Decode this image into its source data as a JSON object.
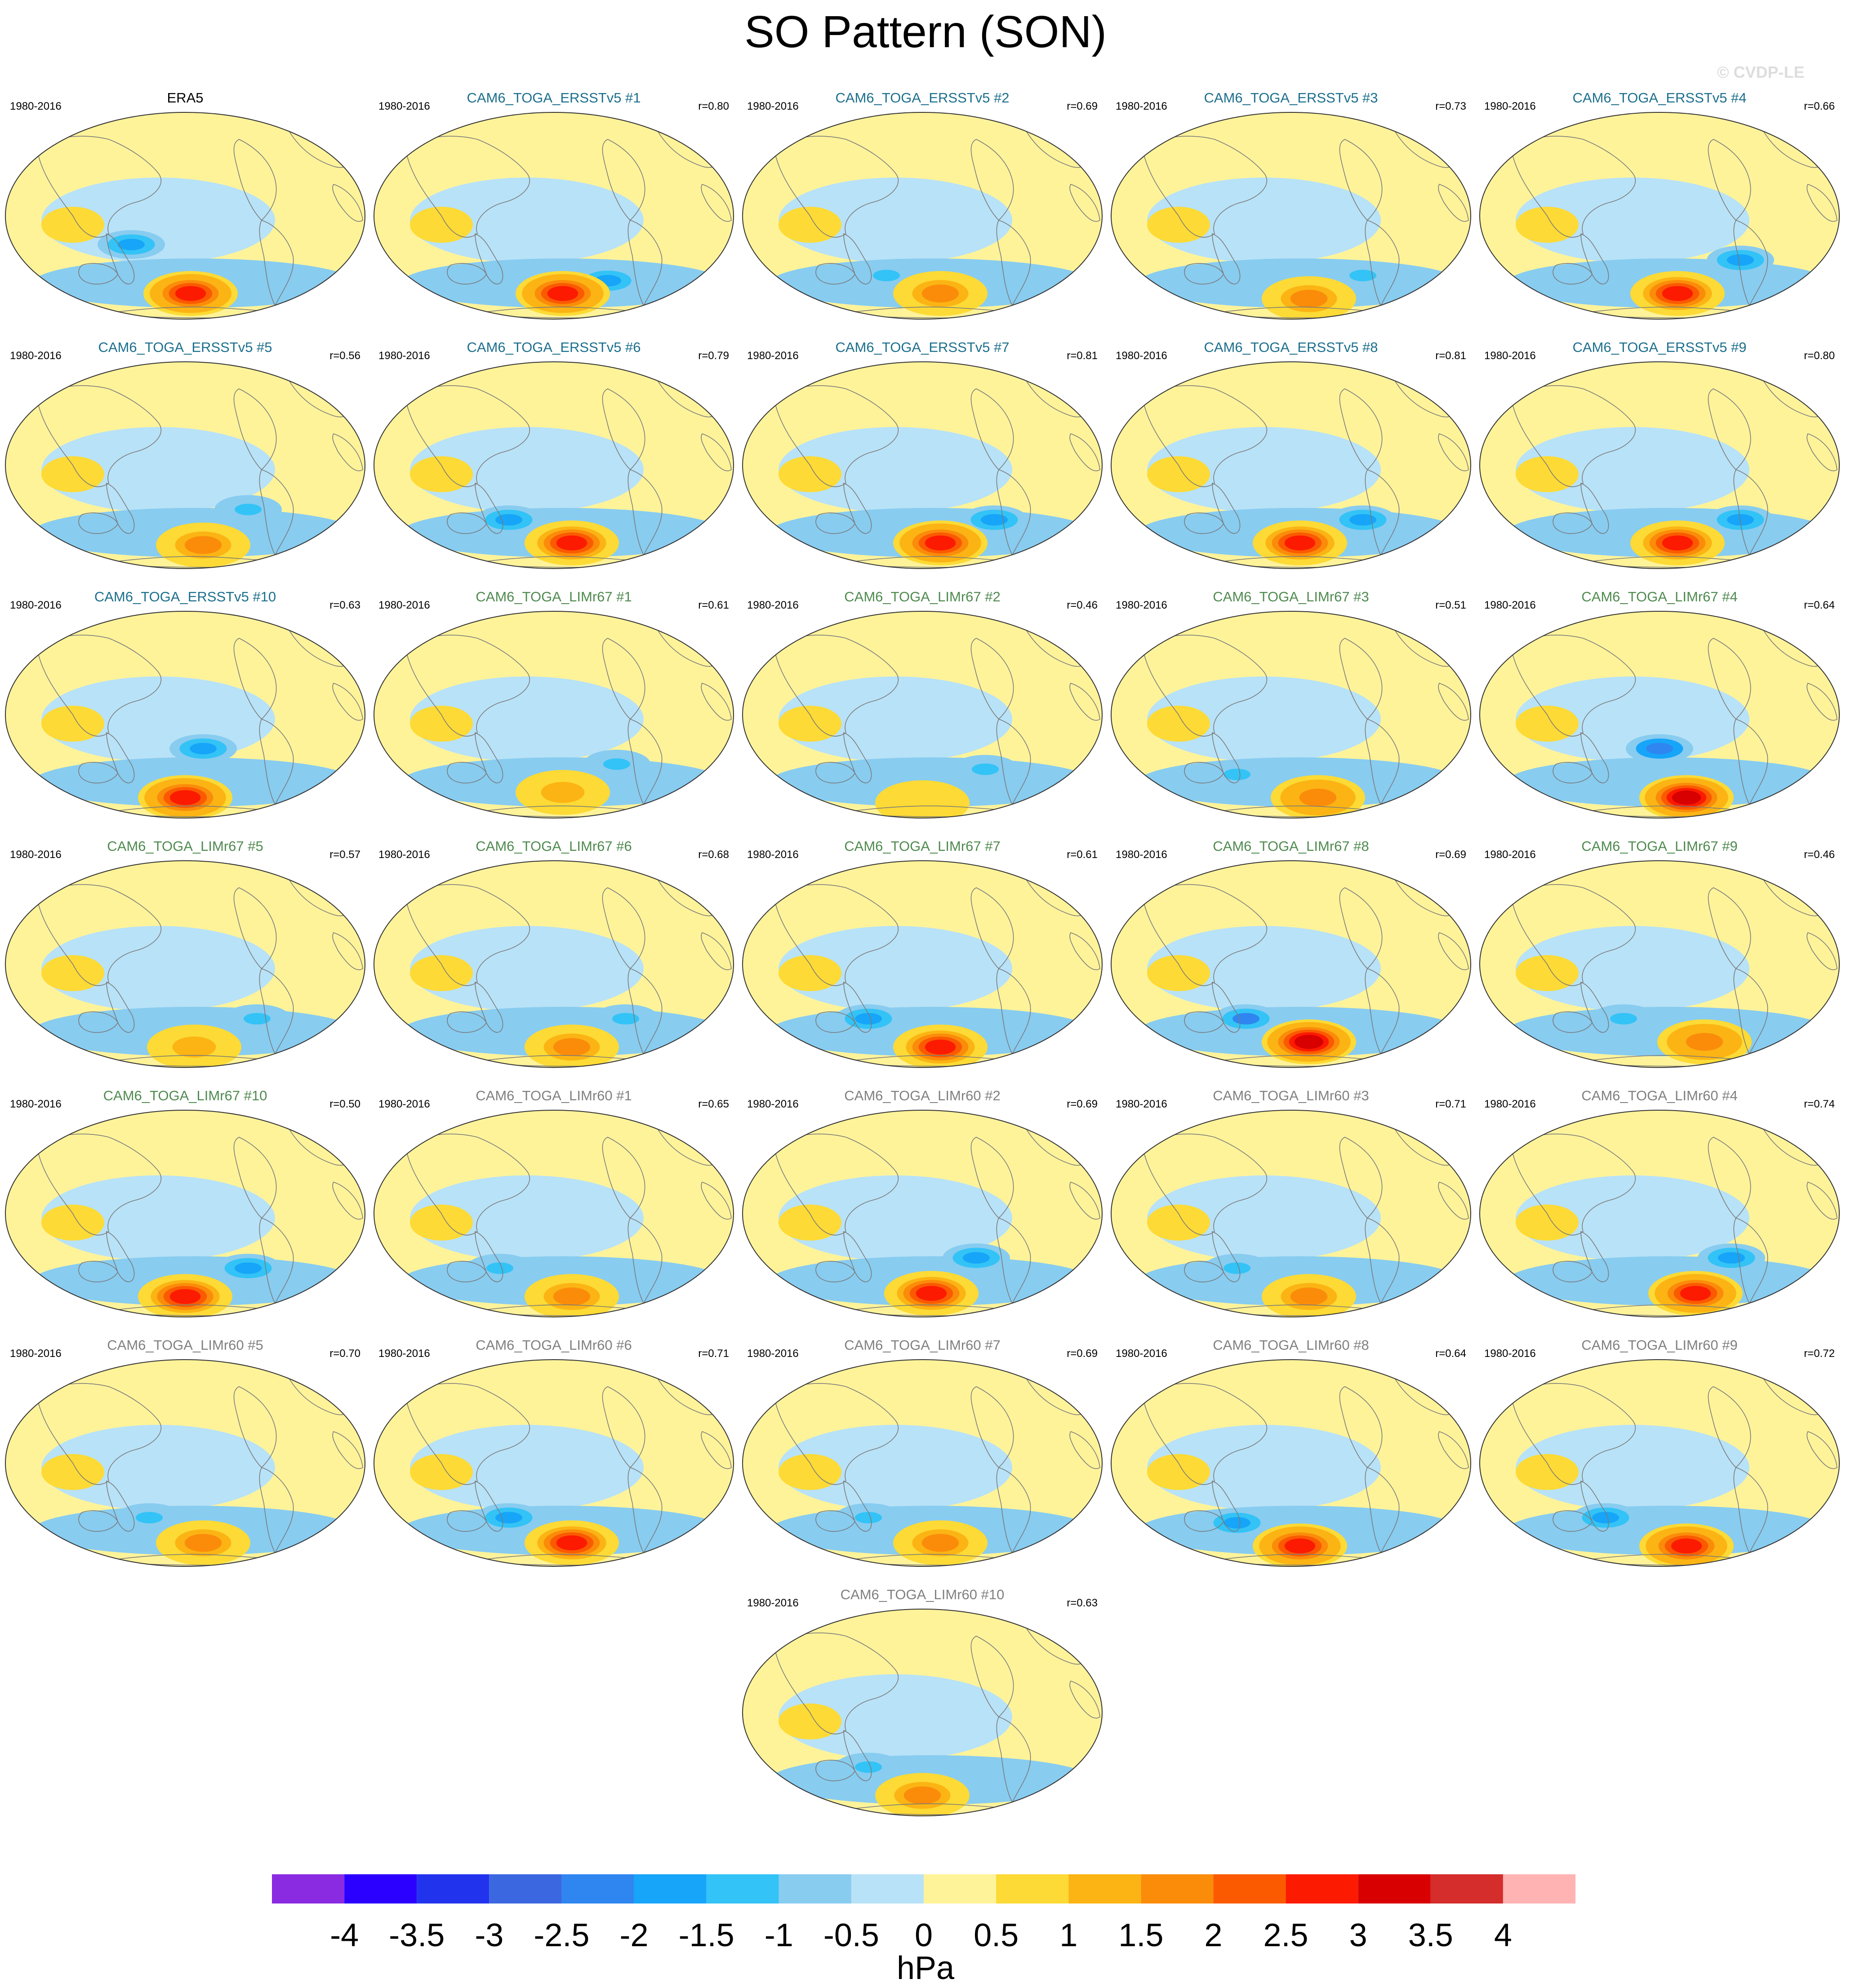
{
  "title": "SO Pattern (SON)",
  "watermark": "© CVDP-LE",
  "colors": {
    "era5_title": "#000000",
    "ersst_title": "#1c6f8c",
    "limr67_title": "#4f8a4f",
    "limr60_title": "#808080",
    "coastline": "#7a7a7a"
  },
  "chart_data": {
    "type": "map-panels",
    "variable": "sea level pressure regression (Southern Oscillation pattern)",
    "season": "SON",
    "projection": "Robinson global",
    "panels": [
      {
        "id": "era5",
        "name": "ERA5",
        "period": "1980-2016",
        "r": "",
        "group": "era5",
        "pos": [
          0.03,
          -0.1
        ],
        "neg": [
          -0.3,
          0.2
        ],
        "peak": 3.1
      },
      {
        "id": "e1",
        "name": "CAM6_TOGA_ERSSTv5 #1",
        "period": "1980-2016",
        "r": "r=0.80",
        "group": "ersst",
        "pos": [
          0.05,
          -0.1
        ],
        "neg": [
          0.3,
          -0.15
        ],
        "peak": 3.2
      },
      {
        "id": "e2",
        "name": "CAM6_TOGA_ERSSTv5 #2",
        "period": "1980-2016",
        "r": "r=0.69",
        "group": "ersst",
        "pos": [
          0.1,
          -0.1
        ],
        "neg": [
          -0.2,
          -0.1
        ],
        "peak": 2.1
      },
      {
        "id": "e3",
        "name": "CAM6_TOGA_ERSSTv5 #3",
        "period": "1980-2016",
        "r": "r=0.73",
        "group": "ersst",
        "pos": [
          0.1,
          -0.15
        ],
        "neg": [
          0.4,
          -0.1
        ],
        "peak": 1.8
      },
      {
        "id": "e4",
        "name": "CAM6_TOGA_ERSSTv5 #4",
        "period": "1980-2016",
        "r": "r=0.66",
        "group": "ersst",
        "pos": [
          0.1,
          -0.1
        ],
        "neg": [
          0.45,
          0.05
        ],
        "peak": 2.9
      },
      {
        "id": "e5",
        "name": "CAM6_TOGA_ERSSTv5 #5",
        "period": "1980-2016",
        "r": "r=0.56",
        "group": "ersst",
        "pos": [
          0.1,
          -0.12
        ],
        "neg": [
          0.35,
          0.05
        ],
        "peak": 2.0
      },
      {
        "id": "e6",
        "name": "CAM6_TOGA_ERSSTv5 #6",
        "period": "1980-2016",
        "r": "r=0.79",
        "group": "ersst",
        "pos": [
          0.1,
          -0.1
        ],
        "neg": [
          -0.25,
          -0.05
        ],
        "peak": 3.0
      },
      {
        "id": "e7",
        "name": "CAM6_TOGA_ERSSTv5 #7",
        "period": "1980-2016",
        "r": "r=0.81",
        "group": "ersst",
        "pos": [
          0.1,
          -0.1
        ],
        "neg": [
          0.4,
          -0.05
        ],
        "peak": 3.1
      },
      {
        "id": "e8",
        "name": "CAM6_TOGA_ERSSTv5 #8",
        "period": "1980-2016",
        "r": "r=0.81",
        "group": "ersst",
        "pos": [
          0.05,
          -0.1
        ],
        "neg": [
          0.4,
          -0.05
        ],
        "peak": 3.0
      },
      {
        "id": "e9",
        "name": "CAM6_TOGA_ERSSTv5 #9",
        "period": "1980-2016",
        "r": "r=0.80",
        "group": "ersst",
        "pos": [
          0.1,
          -0.1
        ],
        "neg": [
          0.45,
          -0.05
        ],
        "peak": 3.0
      },
      {
        "id": "e10",
        "name": "CAM6_TOGA_ERSSTv5 #10",
        "period": "1980-2016",
        "r": "r=0.63",
        "group": "ersst",
        "pos": [
          0.0,
          -0.15
        ],
        "neg": [
          0.1,
          0.15
        ],
        "peak": 3.1
      },
      {
        "id": "l671",
        "name": "CAM6_TOGA_LIMr67 #1",
        "period": "1980-2016",
        "r": "r=0.61",
        "group": "limr67",
        "pos": [
          0.05,
          -0.1
        ],
        "neg": [
          0.35,
          0.0
        ],
        "peak": 1.7
      },
      {
        "id": "l672",
        "name": "CAM6_TOGA_LIMr67 #2",
        "period": "1980-2016",
        "r": "r=0.46",
        "group": "limr67",
        "pos": [
          0.0,
          -0.2
        ],
        "neg": [
          0.35,
          -0.05
        ],
        "peak": 1.2
      },
      {
        "id": "l673",
        "name": "CAM6_TOGA_LIMr67 #3",
        "period": "1980-2016",
        "r": "r=0.51",
        "group": "limr67",
        "pos": [
          0.15,
          -0.15
        ],
        "neg": [
          -0.3,
          -0.1
        ],
        "peak": 2.2
      },
      {
        "id": "l674",
        "name": "CAM6_TOGA_LIMr67 #4",
        "period": "1980-2016",
        "r": "r=0.64",
        "group": "limr67",
        "pos": [
          0.15,
          -0.15
        ],
        "neg": [
          0.0,
          0.15
        ],
        "peak": 3.7
      },
      {
        "id": "l675",
        "name": "CAM6_TOGA_LIMr67 #5",
        "period": "1980-2016",
        "r": "r=0.57",
        "group": "limr67",
        "pos": [
          0.05,
          -0.15
        ],
        "neg": [
          0.4,
          -0.05
        ],
        "peak": 1.6
      },
      {
        "id": "l676",
        "name": "CAM6_TOGA_LIMr67 #6",
        "period": "1980-2016",
        "r": "r=0.68",
        "group": "limr67",
        "pos": [
          0.1,
          -0.15
        ],
        "neg": [
          0.4,
          -0.05
        ],
        "peak": 2.0
      },
      {
        "id": "l677",
        "name": "CAM6_TOGA_LIMr67 #7",
        "period": "1980-2016",
        "r": "r=0.61",
        "group": "limr67",
        "pos": [
          0.1,
          -0.15
        ],
        "neg": [
          -0.3,
          -0.05
        ],
        "peak": 3.0
      },
      {
        "id": "l678",
        "name": "CAM6_TOGA_LIMr67 #8",
        "period": "1980-2016",
        "r": "r=0.69",
        "group": "limr67",
        "pos": [
          0.1,
          -0.1
        ],
        "neg": [
          -0.25,
          -0.05
        ],
        "peak": 3.5
      },
      {
        "id": "l679",
        "name": "CAM6_TOGA_LIMr67 #9",
        "period": "1980-2016",
        "r": "r=0.46",
        "group": "limr67",
        "pos": [
          0.25,
          -0.1
        ],
        "neg": [
          -0.2,
          -0.05
        ],
        "peak": 2.2
      },
      {
        "id": "l6710",
        "name": "CAM6_TOGA_LIMr67 #10",
        "period": "1980-2016",
        "r": "r=0.50",
        "group": "limr67",
        "pos": [
          0.0,
          -0.15
        ],
        "neg": [
          0.35,
          -0.05
        ],
        "peak": 3.0
      },
      {
        "id": "l601",
        "name": "CAM6_TOGA_LIMr60 #1",
        "period": "1980-2016",
        "r": "r=0.65",
        "group": "limr60",
        "pos": [
          0.1,
          -0.15
        ],
        "neg": [
          -0.3,
          -0.05
        ],
        "peak": 1.8
      },
      {
        "id": "l602",
        "name": "CAM6_TOGA_LIMr60 #2",
        "period": "1980-2016",
        "r": "r=0.69",
        "group": "limr60",
        "pos": [
          0.05,
          -0.12
        ],
        "neg": [
          0.3,
          0.05
        ],
        "peak": 2.9
      },
      {
        "id": "l603",
        "name": "CAM6_TOGA_LIMr60 #3",
        "period": "1980-2016",
        "r": "r=0.71",
        "group": "limr60",
        "pos": [
          0.1,
          -0.15
        ],
        "neg": [
          -0.3,
          -0.05
        ],
        "peak": 2.0
      },
      {
        "id": "l604",
        "name": "CAM6_TOGA_LIMr60 #4",
        "period": "1980-2016",
        "r": "r=0.74",
        "group": "limr60",
        "pos": [
          0.2,
          -0.12
        ],
        "neg": [
          0.4,
          0.05
        ],
        "peak": 3.1
      },
      {
        "id": "l605",
        "name": "CAM6_TOGA_LIMr60 #5",
        "period": "1980-2016",
        "r": "r=0.70",
        "group": "limr60",
        "pos": [
          0.1,
          -0.12
        ],
        "neg": [
          -0.2,
          -0.05
        ],
        "peak": 2.1
      },
      {
        "id": "l606",
        "name": "CAM6_TOGA_LIMr60 #6",
        "period": "1980-2016",
        "r": "r=0.71",
        "group": "limr60",
        "pos": [
          0.1,
          -0.12
        ],
        "neg": [
          -0.25,
          -0.05
        ],
        "peak": 2.9
      },
      {
        "id": "l607",
        "name": "CAM6_TOGA_LIMr60 #7",
        "period": "1980-2016",
        "r": "r=0.69",
        "group": "limr60",
        "pos": [
          0.1,
          -0.12
        ],
        "neg": [
          -0.3,
          -0.05
        ],
        "peak": 2.1
      },
      {
        "id": "l608",
        "name": "CAM6_TOGA_LIMr60 #8",
        "period": "1980-2016",
        "r": "r=0.64",
        "group": "limr60",
        "pos": [
          0.05,
          -0.15
        ],
        "neg": [
          -0.3,
          -0.1
        ],
        "peak": 3.1
      },
      {
        "id": "l609",
        "name": "CAM6_TOGA_LIMr60 #9",
        "period": "1980-2016",
        "r": "r=0.72",
        "group": "limr60",
        "pos": [
          0.15,
          -0.15
        ],
        "neg": [
          -0.3,
          -0.05
        ],
        "peak": 3.1
      },
      {
        "id": "l6010",
        "name": "CAM6_TOGA_LIMr60 #10",
        "period": "1980-2016",
        "r": "r=0.63",
        "group": "limr60",
        "pos": [
          0.0,
          -0.15
        ],
        "neg": [
          -0.3,
          -0.05
        ],
        "peak": 2.0
      }
    ],
    "colorbar": {
      "units": "hPa",
      "tick_labels": [
        "-4",
        "-3.5",
        "-3",
        "-2.5",
        "-2",
        "-1.5",
        "-1",
        "-0.5",
        "0",
        "0.5",
        "1",
        "1.5",
        "2",
        "2.5",
        "3",
        "3.5",
        "4"
      ],
      "levels": [
        -4,
        -3.5,
        -3,
        -2.5,
        -2,
        -1.5,
        -1,
        -0.5,
        0,
        0.5,
        1,
        1.5,
        2,
        2.5,
        3,
        3.5,
        4
      ],
      "colors": [
        "#8a2be2",
        "#2b00ff",
        "#2233ee",
        "#3b67e0",
        "#2f86f0",
        "#16a5f8",
        "#33c3f6",
        "#88ccf0",
        "#b8e2f7",
        "#fff39a",
        "#fdda35",
        "#fbb414",
        "#fb8c0a",
        "#fb5a00",
        "#fc1a00",
        "#d80000",
        "#d52c2c",
        "#ffb3b3"
      ]
    }
  }
}
